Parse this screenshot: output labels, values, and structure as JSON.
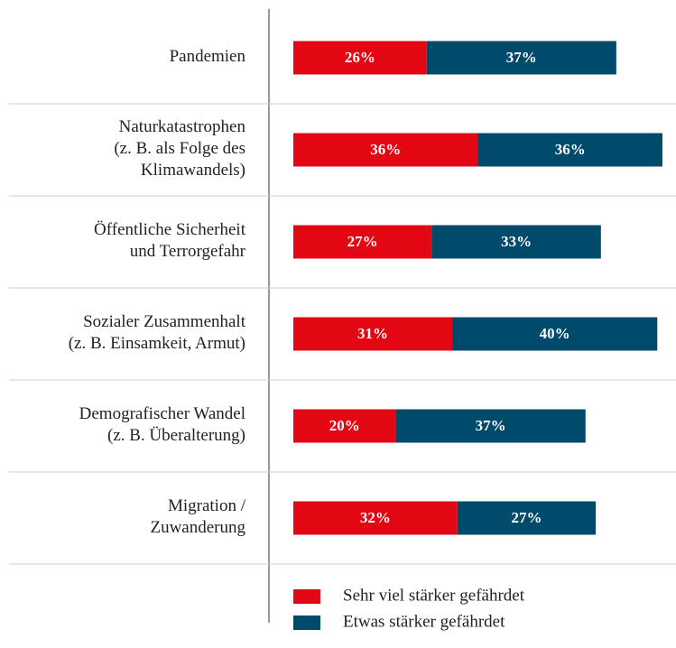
{
  "chart_data": {
    "type": "stacked-bar-horizontal",
    "categories": [
      "Pandemien",
      "Naturkatastrophen\n(z. B. als Folge des\nKlimawandels)",
      "Öffentliche Sicherheit\nund Terrorgefahr",
      "Sozialer Zusammenhalt\n(z. B. Einsamkeit, Armut)",
      "Demografischer Wandel\n(z. B. Überalterung)",
      "Migration /\nZuwanderung"
    ],
    "series": [
      {
        "name": "Sehr viel stärker gefährdet",
        "color": "#e30613",
        "values": [
          26,
          36,
          27,
          31,
          20,
          32
        ],
        "value_labels": [
          "26%",
          "36%",
          "27%",
          "31%",
          "20%",
          "32%"
        ]
      },
      {
        "name": "Etwas stärker gefährdet",
        "color": "#004a6b",
        "values": [
          37,
          36,
          33,
          40,
          37,
          27
        ],
        "value_labels": [
          "37%",
          "36%",
          "33%",
          "40%",
          "37%",
          "27%"
        ]
      }
    ]
  }
}
